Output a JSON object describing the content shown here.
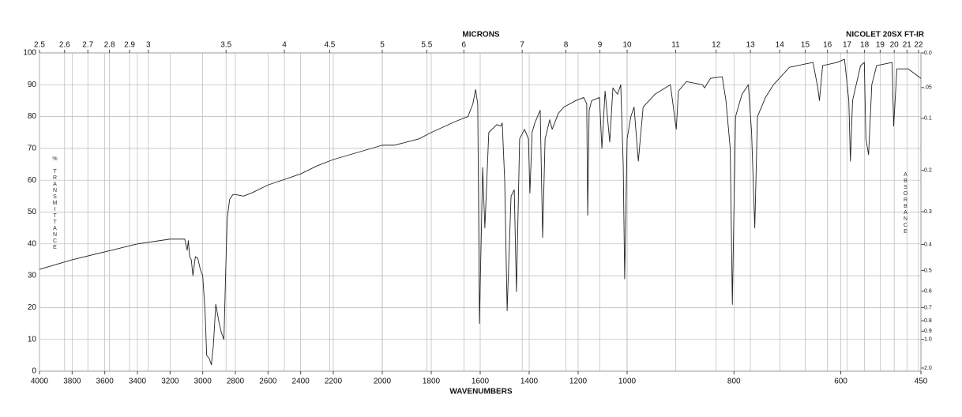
{
  "chart_data": {
    "type": "line",
    "title": "NICOLET 20SX FT-IR",
    "x_label": "WAVENUMBERS",
    "top_axis_label": "MICRONS",
    "y_label": "% TRANSMITTANCE",
    "y2_label": "ABSORBANCE",
    "xlim": [
      4000,
      450
    ],
    "xscale": "piecewise",
    "xbreaks": [
      2200,
      1000
    ],
    "xticks": [
      4000,
      3800,
      3600,
      3400,
      3200,
      3000,
      2800,
      2600,
      2400,
      2200,
      2000,
      1800,
      1600,
      1400,
      1200,
      1000,
      800,
      600,
      450
    ],
    "top_ticks": [
      2.5,
      2.6,
      2.7,
      2.8,
      2.9,
      3,
      3.5,
      4,
      4.5,
      5,
      5.5,
      6,
      7,
      8,
      9,
      10,
      11,
      12,
      13,
      14,
      15,
      16,
      17,
      18,
      19,
      20,
      21,
      22
    ],
    "ylim": [
      0,
      100
    ],
    "yticks": [
      0,
      10,
      20,
      30,
      40,
      50,
      60,
      70,
      80,
      90,
      100
    ],
    "y2ticks": [
      {
        "value": 0,
        "label": "0.0"
      },
      {
        "value": 0.05,
        "label": ".05"
      },
      0.1,
      0.2,
      0.3,
      0.4,
      0.5,
      0.6,
      0.7,
      0.8,
      0.9,
      {
        "value": 1,
        "label": "1.0"
      },
      {
        "value": 2,
        "label": "2.0"
      }
    ],
    "grid": true,
    "x": [
      4000,
      3800,
      3600,
      3400,
      3200,
      3110,
      3095,
      3088,
      3080,
      3070,
      3060,
      3045,
      3030,
      3015,
      3000,
      2985,
      2976,
      2960,
      2947,
      2935,
      2920,
      2899,
      2885,
      2870,
      2860,
      2850,
      2835,
      2815,
      2800,
      2750,
      2700,
      2600,
      2400,
      2300,
      2200,
      2000,
      1950,
      1900,
      1850,
      1800,
      1700,
      1650,
      1630,
      1619,
      1610,
      1603,
      1590,
      1581,
      1565,
      1532,
      1516,
      1510,
      1500,
      1490,
      1474,
      1461,
      1452,
      1439,
      1419,
      1403,
      1397,
      1388,
      1377,
      1355,
      1345,
      1335,
      1316,
      1306,
      1281,
      1258,
      1210,
      1177,
      1165,
      1161,
      1155,
      1145,
      1113,
      1103,
      1090,
      1071,
      1058,
      1039,
      1026,
      1016,
      1010,
      1000,
      993,
      987,
      979,
      970,
      948,
      919,
      908,
      904,
      889,
      859,
      855,
      844,
      822,
      815,
      807,
      803,
      797,
      785,
      773,
      767,
      761,
      756,
      741,
      726,
      696,
      667,
      652,
      643,
      640,
      634,
      607,
      593,
      585,
      582,
      578,
      563,
      556,
      553,
      548,
      542,
      533,
      504,
      501,
      495,
      474,
      450
    ],
    "series": [
      {
        "color": "#222222",
        "values": [
          32,
          35,
          37.5,
          40,
          41.5,
          41.5,
          38,
          41,
          36,
          35,
          30,
          36,
          35.5,
          32,
          30,
          18,
          5,
          4,
          2,
          8,
          21,
          15,
          12,
          10,
          30,
          48,
          54,
          55.5,
          55.5,
          55,
          56,
          58.5,
          62,
          64.5,
          66.5,
          71,
          71,
          72,
          73,
          75,
          78.5,
          80,
          84,
          88.5,
          84,
          15,
          64,
          45,
          75,
          77.5,
          77,
          78,
          60,
          19,
          55,
          57,
          25,
          73,
          76,
          73,
          56,
          75,
          78,
          82,
          42,
          73,
          79,
          76,
          81,
          83,
          85,
          86,
          84,
          49,
          82,
          85,
          86,
          70,
          88,
          72,
          89,
          87,
          90,
          65,
          29,
          73,
          80,
          83,
          66,
          83,
          87,
          90,
          76,
          88,
          91,
          90,
          89,
          92,
          92.5,
          85,
          70,
          21,
          80,
          87,
          90,
          75,
          45,
          80,
          86,
          90,
          95.5,
          96.5,
          97,
          89,
          85,
          96,
          97,
          98,
          85,
          66,
          85,
          96,
          97,
          73,
          68,
          90,
          96,
          97,
          77,
          95,
          95,
          92
        ]
      }
    ]
  }
}
